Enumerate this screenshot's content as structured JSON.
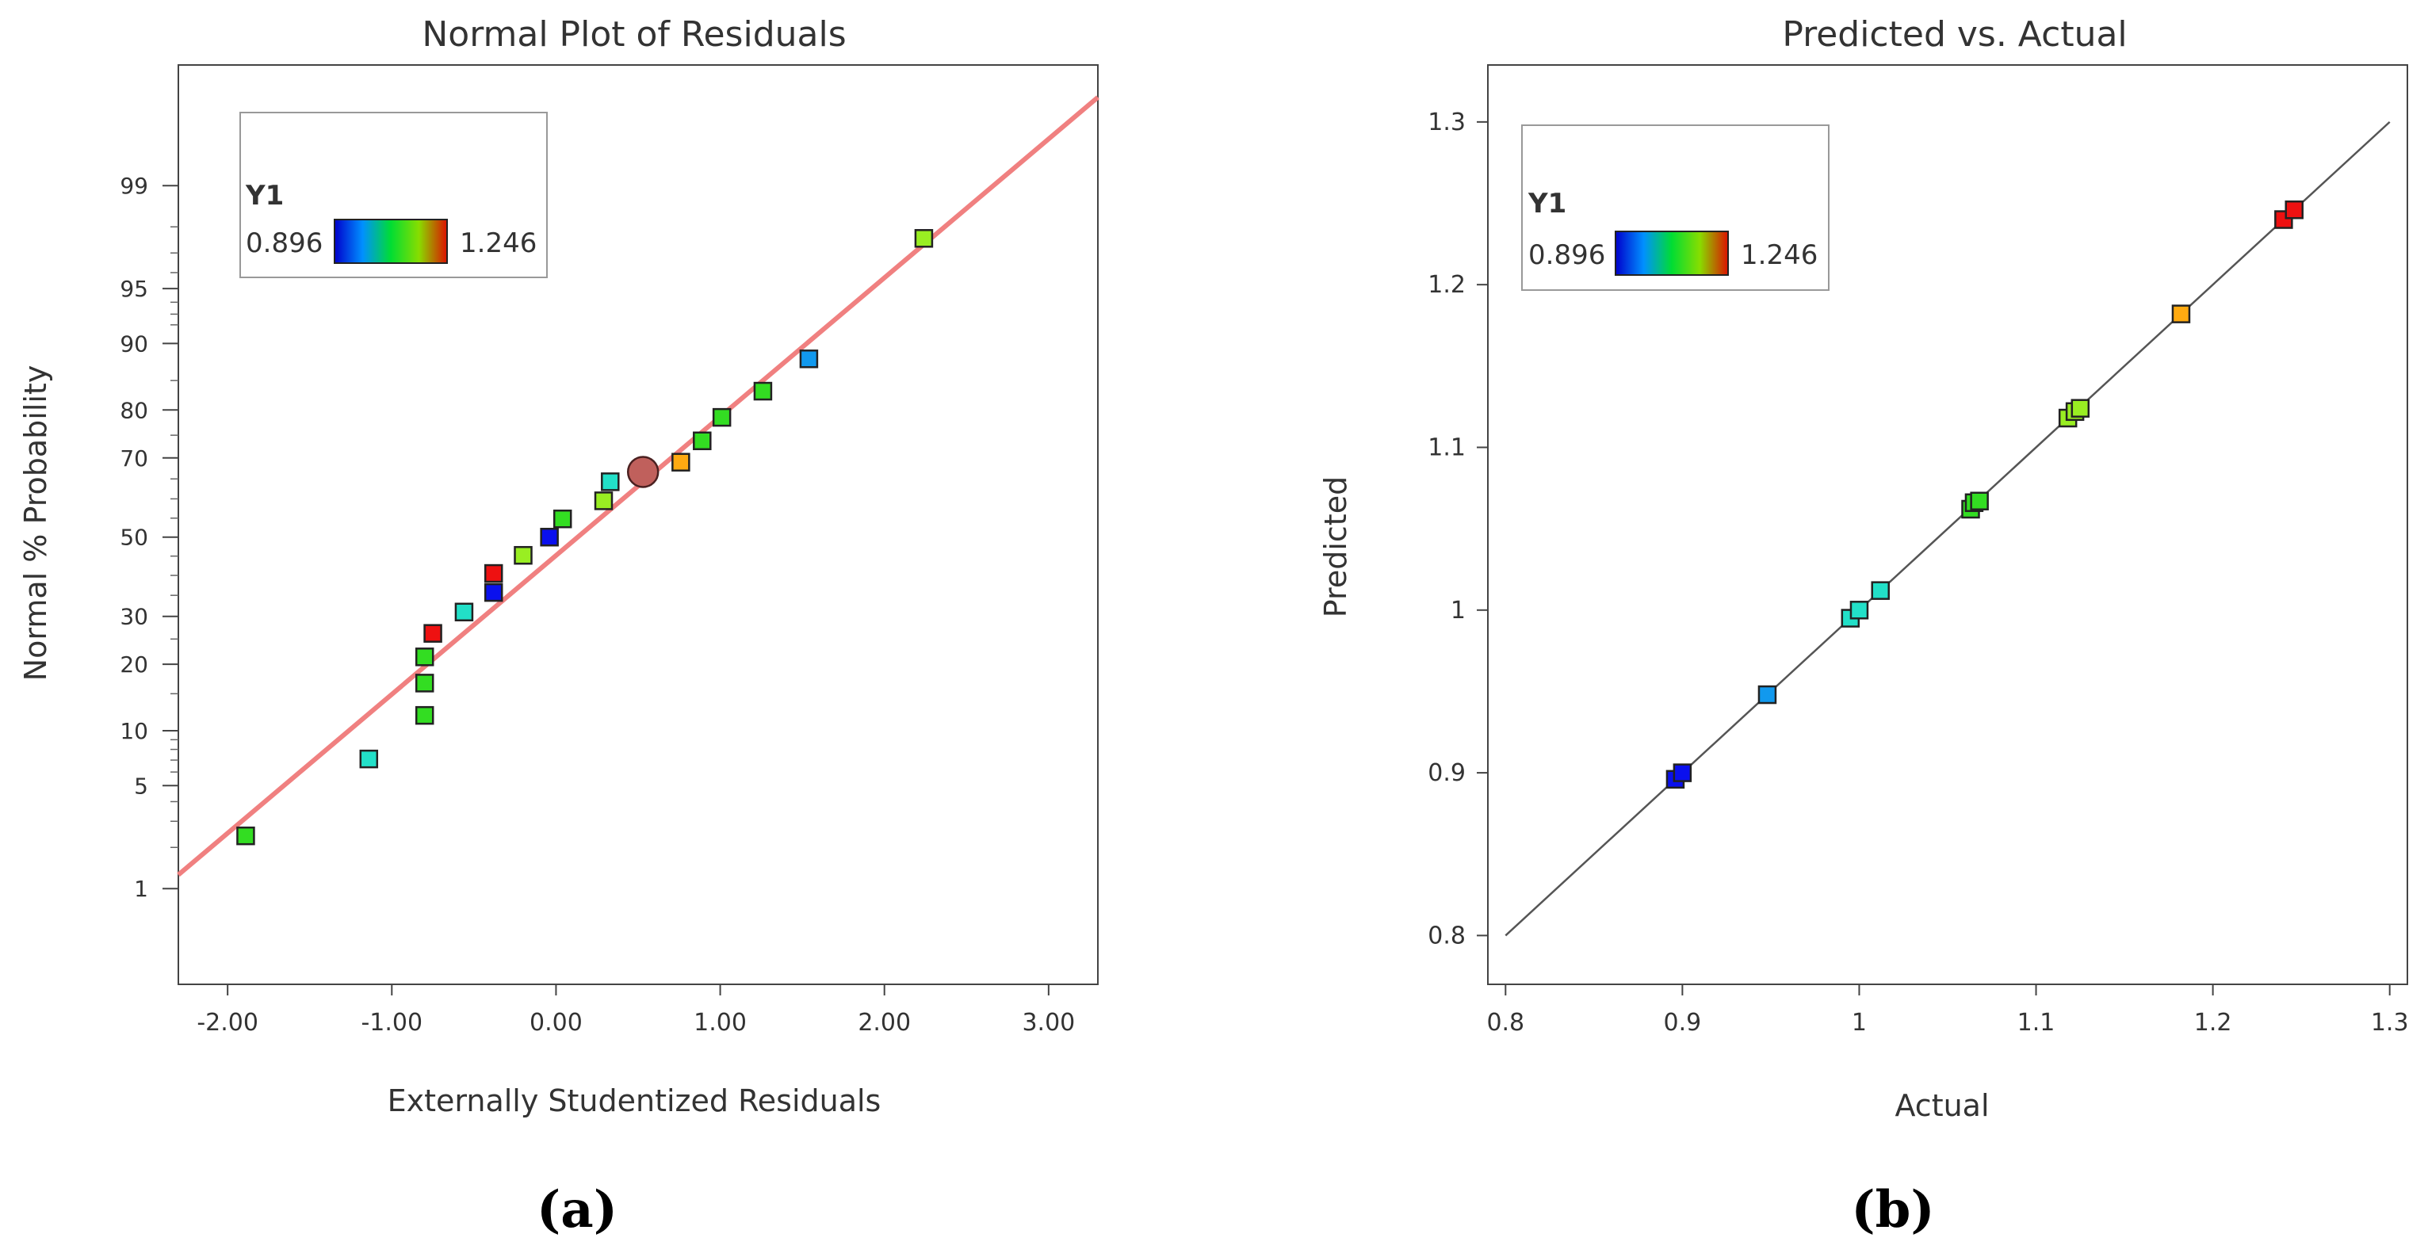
{
  "chart_data": [
    {
      "type": "scatter",
      "id": "normal_plot",
      "title": "Normal Plot of Residuals",
      "xlabel": "Externally Studentized Residuals",
      "ylabel": "Normal % Probability",
      "xlim": [
        -2.3,
        3.3
      ],
      "x_ticks": [
        "-2.00",
        "-1.00",
        "0.00",
        "1.00",
        "2.00",
        "3.00"
      ],
      "x_tick_values": [
        -2,
        -1,
        0,
        1,
        2,
        3
      ],
      "y_ticks": [
        "1",
        "5",
        "10",
        "20",
        "30",
        "50",
        "70",
        "80",
        "90",
        "95",
        "99"
      ],
      "y_tick_values": [
        1,
        5,
        10,
        20,
        30,
        50,
        70,
        80,
        90,
        95,
        99
      ],
      "fit_line": {
        "x1": -2.3,
        "p1": 1.27,
        "x2": 3.3,
        "p2": 99.82,
        "color": "#f08080"
      },
      "legend": {
        "title": "Y1",
        "min_label": "0.896",
        "max_label": "1.246"
      },
      "panel_label": "(a)",
      "points": [
        {
          "x": -1.89,
          "p": 2.4,
          "y1": 1.07,
          "color": "#33dd22",
          "shape": "square"
        },
        {
          "x": -1.14,
          "p": 7.1,
          "y1": 0.995,
          "color": "#22e0c8",
          "shape": "square"
        },
        {
          "x": -0.8,
          "p": 11.9,
          "y1": 1.064,
          "color": "#33dd22",
          "shape": "square"
        },
        {
          "x": -0.8,
          "p": 16.7,
          "y1": 1.066,
          "color": "#33dd22",
          "shape": "square"
        },
        {
          "x": -0.8,
          "p": 21.4,
          "y1": 1.065,
          "color": "#33dd22",
          "shape": "square"
        },
        {
          "x": -0.75,
          "p": 26.2,
          "y1": 1.246,
          "color": "#ee1111",
          "shape": "square"
        },
        {
          "x": -0.56,
          "p": 31.0,
          "y1": 1.0,
          "color": "#22e0c8",
          "shape": "square"
        },
        {
          "x": -0.38,
          "p": 35.7,
          "y1": 0.896,
          "color": "#0a10ee",
          "shape": "square"
        },
        {
          "x": -0.38,
          "p": 40.5,
          "y1": 1.24,
          "color": "#ee1111",
          "shape": "square"
        },
        {
          "x": -0.2,
          "p": 45.2,
          "y1": 1.12,
          "color": "#99ee22",
          "shape": "square"
        },
        {
          "x": -0.04,
          "p": 50.0,
          "y1": 0.9,
          "color": "#0a10ee",
          "shape": "square"
        },
        {
          "x": 0.04,
          "p": 54.8,
          "y1": 1.067,
          "color": "#33dd22",
          "shape": "square"
        },
        {
          "x": 0.29,
          "p": 59.5,
          "y1": 1.118,
          "color": "#99ee22",
          "shape": "square"
        },
        {
          "x": 0.33,
          "p": 64.3,
          "y1": 1.012,
          "color": "#22e0c8",
          "shape": "square"
        },
        {
          "x": 0.53,
          "p": 66.7,
          "y1": 1.1,
          "color": "#c0605c",
          "shape": "circle"
        },
        {
          "x": 0.76,
          "p": 69.0,
          "y1": 1.182,
          "color": "#ffaa11",
          "shape": "square"
        },
        {
          "x": 0.89,
          "p": 73.8,
          "y1": 1.068,
          "color": "#33dd22",
          "shape": "square"
        },
        {
          "x": 1.01,
          "p": 78.6,
          "y1": 1.066,
          "color": "#33dd22",
          "shape": "square"
        },
        {
          "x": 1.26,
          "p": 83.3,
          "y1": 1.064,
          "color": "#33dd22",
          "shape": "square"
        },
        {
          "x": 1.54,
          "p": 88.1,
          "y1": 0.948,
          "color": "#1199ee",
          "shape": "square"
        },
        {
          "x": 2.24,
          "p": 97.6,
          "y1": 1.125,
          "color": "#99ee22",
          "shape": "square"
        }
      ]
    },
    {
      "type": "scatter",
      "id": "predicted_vs_actual",
      "title": "Predicted vs. Actual",
      "xlabel": "Actual",
      "ylabel": "Predicted",
      "xlim": [
        0.79,
        1.31
      ],
      "ylim": [
        0.77,
        1.335
      ],
      "x_ticks": [
        "0.8",
        "0.9",
        "1",
        "1.1",
        "1.2",
        "1.3"
      ],
      "x_tick_values": [
        0.8,
        0.9,
        1.0,
        1.1,
        1.2,
        1.3
      ],
      "y_ticks": [
        "0.8",
        "0.9",
        "1",
        "1.1",
        "1.2",
        "1.3"
      ],
      "y_tick_values": [
        0.8,
        0.9,
        1.0,
        1.1,
        1.2,
        1.3
      ],
      "reference_line": {
        "from": [
          0.8,
          0.8
        ],
        "to": [
          1.3,
          1.3
        ],
        "color": "#555555"
      },
      "legend": {
        "title": "Y1",
        "min_label": "0.896",
        "max_label": "1.246"
      },
      "panel_label": "(b)",
      "points": [
        {
          "x": 0.896,
          "y": 0.896,
          "color": "#0a10ee"
        },
        {
          "x": 0.9,
          "y": 0.9,
          "color": "#0a10ee"
        },
        {
          "x": 0.948,
          "y": 0.948,
          "color": "#1199ee"
        },
        {
          "x": 0.995,
          "y": 0.995,
          "color": "#22e0c8"
        },
        {
          "x": 1.0,
          "y": 1.0,
          "color": "#22e0c8"
        },
        {
          "x": 1.012,
          "y": 1.012,
          "color": "#22e0c8"
        },
        {
          "x": 1.063,
          "y": 1.062,
          "color": "#33dd22"
        },
        {
          "x": 1.065,
          "y": 1.066,
          "color": "#33dd22"
        },
        {
          "x": 1.068,
          "y": 1.067,
          "color": "#33dd22"
        },
        {
          "x": 1.118,
          "y": 1.118,
          "color": "#99ee22"
        },
        {
          "x": 1.122,
          "y": 1.122,
          "color": "#99ee22"
        },
        {
          "x": 1.125,
          "y": 1.124,
          "color": "#99ee22"
        },
        {
          "x": 1.182,
          "y": 1.182,
          "color": "#ffaa11"
        },
        {
          "x": 1.24,
          "y": 1.24,
          "color": "#ee1111"
        },
        {
          "x": 1.246,
          "y": 1.246,
          "color": "#ee1111"
        }
      ]
    }
  ]
}
